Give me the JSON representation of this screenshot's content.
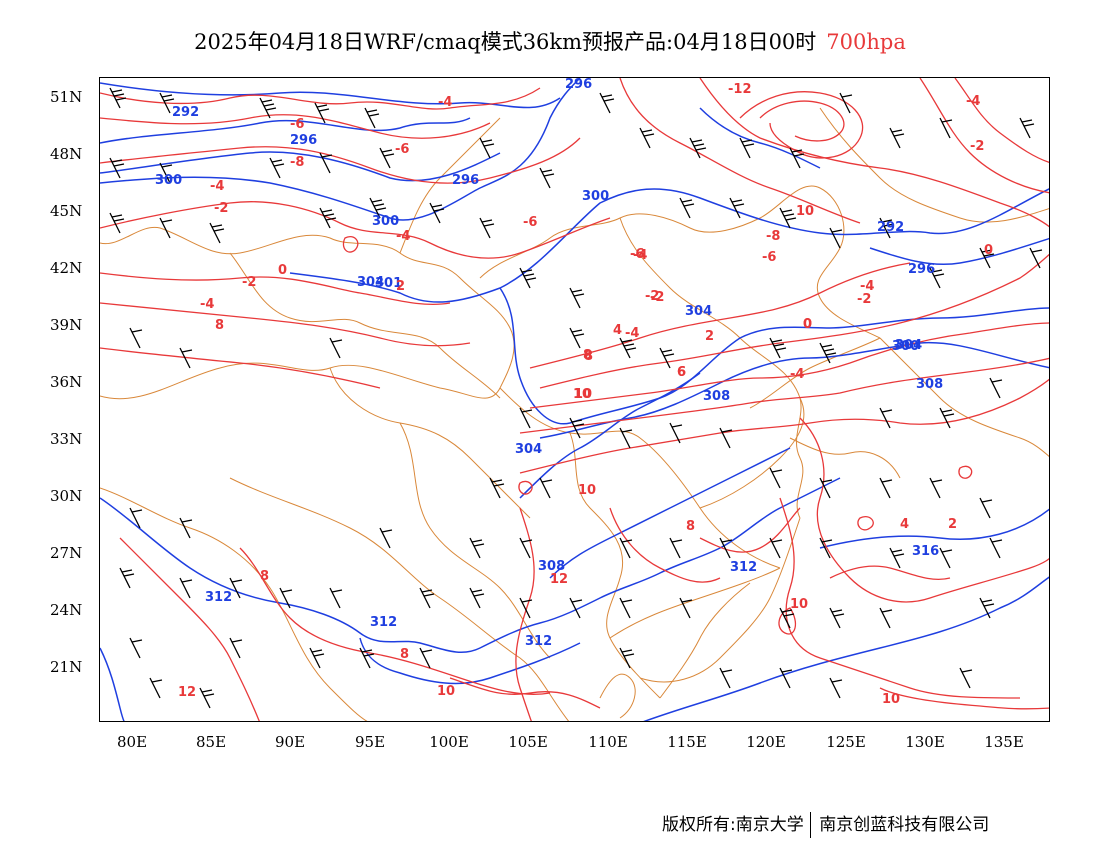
{
  "title": {
    "main": "2025年04月18日WRF/cmaq模式36km预报产品:04月18日00时",
    "level": "700hpa"
  },
  "colors": {
    "height_contour": "#1f3fe0",
    "temperature_contour": "#e8393a",
    "boundary": "#d9883a",
    "wind_barb": "#000000",
    "level_text": "#e8393a"
  },
  "axes": {
    "lat_labels": [
      "51N",
      "48N",
      "45N",
      "42N",
      "39N",
      "36N",
      "33N",
      "30N",
      "27N",
      "24N",
      "21N"
    ],
    "lon_labels": [
      "80E",
      "85E",
      "90E",
      "95E",
      "100E",
      "105E",
      "110E",
      "115E",
      "120E",
      "125E",
      "130E",
      "135E"
    ]
  },
  "contour_labels": {
    "height": [
      "296",
      "292",
      "296",
      "300",
      "296",
      "300",
      "300",
      "304",
      "308",
      "304",
      "312",
      "312",
      "312",
      "312",
      "308",
      "304",
      "300",
      "292",
      "296",
      "304",
      "308",
      "316",
      "301"
    ],
    "temperature": [
      "-4",
      "-6",
      "-6",
      "-8",
      "-4",
      "-6",
      "-2",
      "-4",
      "-2",
      "-6",
      "-4",
      "0",
      "-2",
      "-4",
      "8",
      "2",
      "4",
      "8",
      "10",
      "-4",
      "-2",
      "-12",
      "-4",
      "-2",
      "0",
      "10",
      "-8",
      "-6",
      "-4",
      "-2",
      "0",
      "2",
      "6",
      "-4",
      "8",
      "10",
      "8",
      "12",
      "8",
      "8",
      "10",
      "12",
      "6",
      "4",
      "2",
      "10",
      "10",
      "10",
      "0"
    ]
  },
  "copyright": {
    "left": "版权所有:南京大学",
    "right": "南京创蓝科技有限公司"
  }
}
